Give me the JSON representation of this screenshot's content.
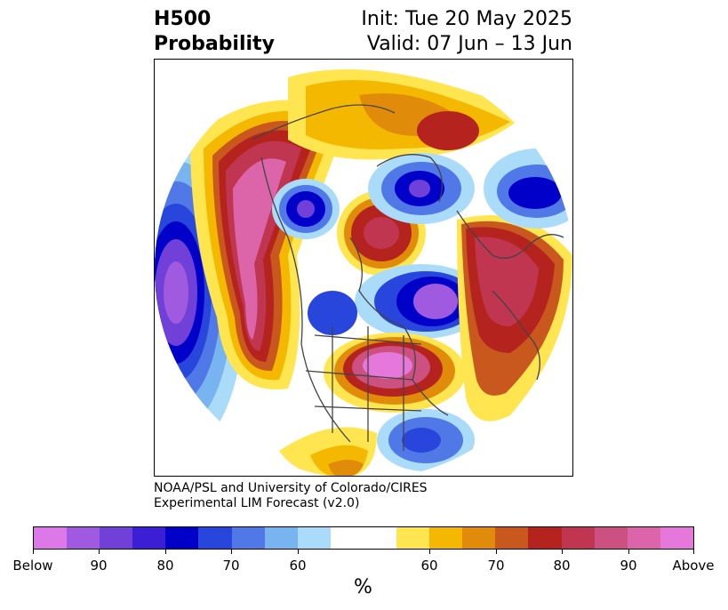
{
  "title": {
    "left_line1": "H500",
    "left_line2": "Probability",
    "right_line1": "Init: Tue 20 May 2025",
    "right_line2": "Valid: 07 Jun – 13 Jun"
  },
  "credit": {
    "line1": "NOAA/PSL and University of Colorado/CIRES",
    "line2": "Experimental LIM Forecast (v2.0)"
  },
  "colorbar": {
    "colors": [
      "#dc78e8",
      "#a05ae0",
      "#7040d8",
      "#3c1ed4",
      "#0000c8",
      "#2846dc",
      "#5078e6",
      "#78b4f0",
      "#aadcfa",
      "#ffffff",
      "#ffffff",
      "#ffe650",
      "#f5b800",
      "#e08c0a",
      "#c8581e",
      "#b4231e",
      "#c03650",
      "#cc5080",
      "#dc64a8",
      "#e678dc"
    ],
    "tick_labels": [
      "Below",
      "90",
      "80",
      "70",
      "60",
      "60",
      "70",
      "80",
      "90",
      "Above"
    ],
    "unit": "%"
  },
  "map": {
    "projection": "north-polar-stereographic",
    "features": [
      {
        "name": "west-coast-above-anomaly",
        "category": "above",
        "peak": "90+"
      },
      {
        "name": "eastern-pacific-below-anomaly",
        "category": "below",
        "peak": "90+"
      },
      {
        "name": "alaska-below-anomaly",
        "category": "below",
        "peak": "80"
      },
      {
        "name": "pacific-arctic-above-anomaly",
        "category": "above",
        "peak": "90"
      },
      {
        "name": "hudson-bay-below-anomaly",
        "category": "below",
        "peak": "80"
      },
      {
        "name": "northeast-us-above-anomaly",
        "category": "above",
        "peak": "90+"
      },
      {
        "name": "greenland-below-anomaly",
        "category": "below",
        "peak": "90+"
      },
      {
        "name": "europe-above-anomaly",
        "category": "above",
        "peak": "90"
      },
      {
        "name": "siberia-above-anomaly",
        "category": "above",
        "peak": "80"
      },
      {
        "name": "north-atlantic-below-anomaly",
        "category": "below",
        "peak": "70"
      }
    ]
  }
}
